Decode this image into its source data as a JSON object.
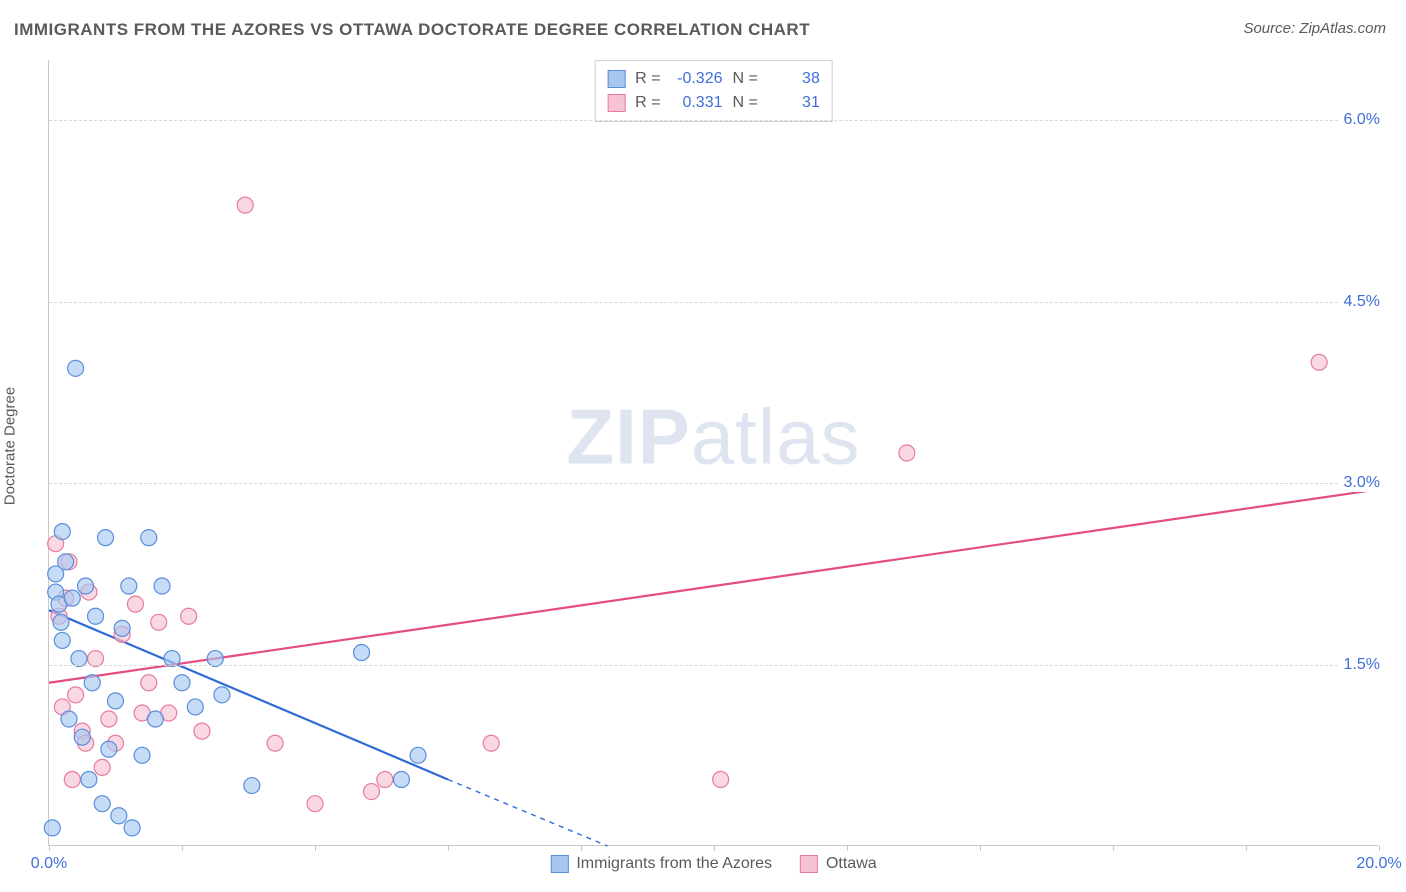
{
  "title": "IMMIGRANTS FROM THE AZORES VS OTTAWA DOCTORATE DEGREE CORRELATION CHART",
  "source_label": "Source: ZipAtlas.com",
  "watermark": {
    "part1": "ZIP",
    "part2": "atlas"
  },
  "ylabel": "Doctorate Degree",
  "chart": {
    "type": "scatter-with-regression",
    "background_color": "#ffffff",
    "grid_color": "#d8d8d8",
    "axis_color": "#c8c8c8",
    "tick_label_color": "#3f6fd9",
    "tick_fontsize": 16,
    "xlim": [
      0,
      20
    ],
    "ylim": [
      0,
      6.5
    ],
    "y_ticks": [
      1.5,
      3.0,
      4.5,
      6.0
    ],
    "y_tick_labels": [
      "1.5%",
      "3.0%",
      "4.5%",
      "6.0%"
    ],
    "x_ticks": [
      0,
      2,
      4,
      6,
      8,
      10,
      12,
      14,
      16,
      18,
      20
    ],
    "x_tick_labels": {
      "0": "0.0%",
      "20": "20.0%"
    },
    "marker_radius": 8,
    "marker_stroke_width": 1.2,
    "line_width": 2.2,
    "series": {
      "azores": {
        "label": "Immigrants from the Azores",
        "fill_color": "#a8c7f0",
        "stroke_color": "#5a8edb",
        "line_color": "#2f6bd6",
        "R": "-0.326",
        "N": "38",
        "regression": {
          "x1": 0,
          "y1": 1.95,
          "x2_solid": 6.0,
          "y2_solid": 0.55,
          "x2_dash": 8.4,
          "y2_dash": 0.0
        },
        "points": [
          [
            0.05,
            0.15
          ],
          [
            0.1,
            2.25
          ],
          [
            0.1,
            2.1
          ],
          [
            0.15,
            2.0
          ],
          [
            0.18,
            1.85
          ],
          [
            0.2,
            2.6
          ],
          [
            0.2,
            1.7
          ],
          [
            0.25,
            2.35
          ],
          [
            0.3,
            1.05
          ],
          [
            0.35,
            2.05
          ],
          [
            0.4,
            3.95
          ],
          [
            0.45,
            1.55
          ],
          [
            0.5,
            0.9
          ],
          [
            0.55,
            2.15
          ],
          [
            0.6,
            0.55
          ],
          [
            0.65,
            1.35
          ],
          [
            0.7,
            1.9
          ],
          [
            0.8,
            0.35
          ],
          [
            0.85,
            2.55
          ],
          [
            0.9,
            0.8
          ],
          [
            1.0,
            1.2
          ],
          [
            1.05,
            0.25
          ],
          [
            1.1,
            1.8
          ],
          [
            1.2,
            2.15
          ],
          [
            1.25,
            0.15
          ],
          [
            1.4,
            0.75
          ],
          [
            1.5,
            2.55
          ],
          [
            1.6,
            1.05
          ],
          [
            1.7,
            2.15
          ],
          [
            1.85,
            1.55
          ],
          [
            2.0,
            1.35
          ],
          [
            2.2,
            1.15
          ],
          [
            2.5,
            1.55
          ],
          [
            2.6,
            1.25
          ],
          [
            3.05,
            0.5
          ],
          [
            4.7,
            1.6
          ],
          [
            5.3,
            0.55
          ],
          [
            5.55,
            0.75
          ]
        ]
      },
      "ottawa": {
        "label": "Ottawa",
        "fill_color": "#f6c3d2",
        "stroke_color": "#e77ba0",
        "line_color": "#e44d7e",
        "R": "0.331",
        "N": "31",
        "regression": {
          "x1": 0,
          "y1": 1.35,
          "x2": 20.0,
          "y2": 2.95
        },
        "points": [
          [
            0.1,
            2.5
          ],
          [
            0.15,
            1.9
          ],
          [
            0.2,
            1.15
          ],
          [
            0.25,
            2.05
          ],
          [
            0.3,
            2.35
          ],
          [
            0.35,
            0.55
          ],
          [
            0.4,
            1.25
          ],
          [
            0.5,
            0.95
          ],
          [
            0.55,
            0.85
          ],
          [
            0.6,
            2.1
          ],
          [
            0.7,
            1.55
          ],
          [
            0.8,
            0.65
          ],
          [
            0.9,
            1.05
          ],
          [
            1.0,
            0.85
          ],
          [
            1.1,
            1.75
          ],
          [
            1.3,
            2.0
          ],
          [
            1.4,
            1.1
          ],
          [
            1.5,
            1.35
          ],
          [
            1.65,
            1.85
          ],
          [
            1.8,
            1.1
          ],
          [
            2.1,
            1.9
          ],
          [
            2.3,
            0.95
          ],
          [
            2.95,
            5.3
          ],
          [
            3.4,
            0.85
          ],
          [
            4.0,
            0.35
          ],
          [
            4.85,
            0.45
          ],
          [
            5.05,
            0.55
          ],
          [
            6.65,
            0.85
          ],
          [
            10.1,
            0.55
          ],
          [
            12.9,
            3.25
          ],
          [
            19.1,
            4.0
          ]
        ]
      }
    }
  },
  "legend_top": {
    "row_r_label": "R =",
    "row_n_label": "N ="
  }
}
